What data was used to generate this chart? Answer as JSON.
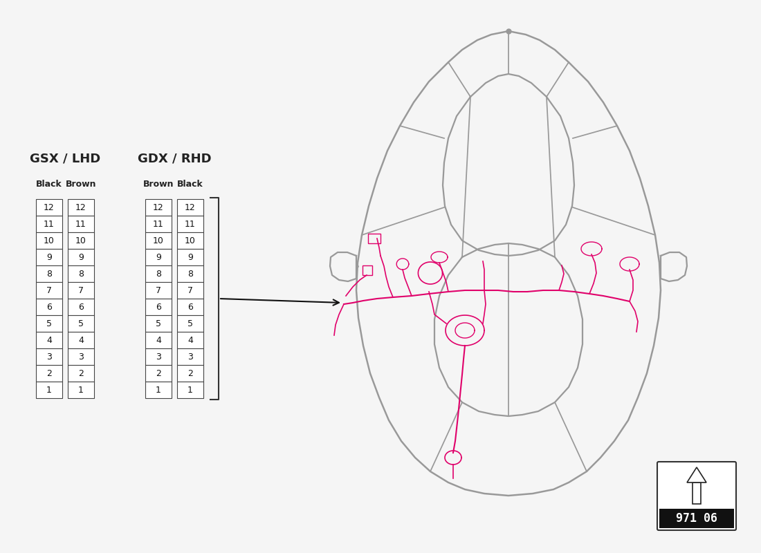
{
  "bg_color": "#f5f5f5",
  "title_gsx": "GSX / LHD",
  "title_gdx": "GDX / RHD",
  "col_headers_gsx": [
    "Black",
    "Brown"
  ],
  "col_headers_gdx": [
    "Brown",
    "Black"
  ],
  "rows": [
    12,
    11,
    10,
    9,
    8,
    7,
    6,
    5,
    4,
    3,
    2,
    1
  ],
  "table_color": "#000000",
  "arrow_box_number": "971 06",
  "car_outline_color": "#999999",
  "wiring_color": "#e0006a"
}
